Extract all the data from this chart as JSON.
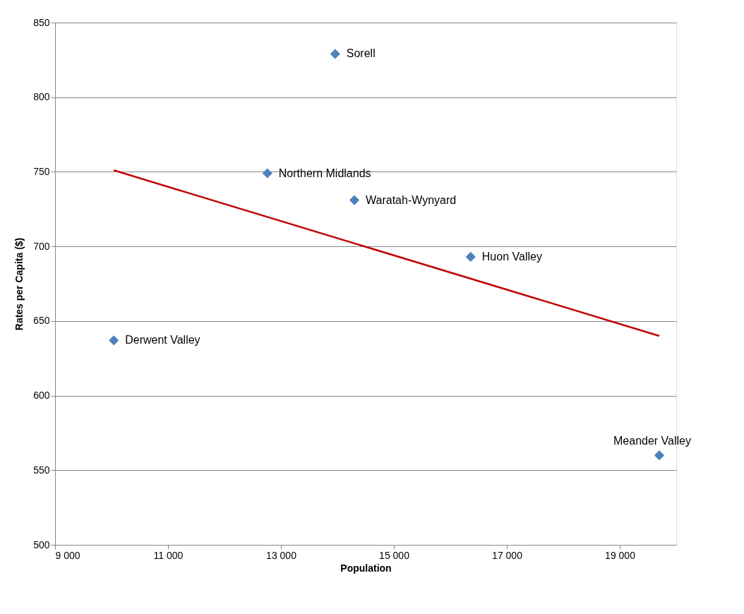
{
  "chart_data": {
    "type": "scatter",
    "xlabel": "Population",
    "ylabel": "Rates per Capita ($)",
    "xlim": [
      9000,
      20000
    ],
    "ylim": [
      500,
      850
    ],
    "xticks": [
      {
        "value": 9000,
        "label": "9 000"
      },
      {
        "value": 11000,
        "label": "11 000"
      },
      {
        "value": 13000,
        "label": "13 000"
      },
      {
        "value": 15000,
        "label": "15 000"
      },
      {
        "value": 17000,
        "label": "17 000"
      },
      {
        "value": 19000,
        "label": "19 000"
      }
    ],
    "yticks": [
      500,
      550,
      600,
      650,
      700,
      750,
      800,
      850
    ],
    "grid": "y",
    "series": [
      {
        "marker": "diamond",
        "color": "#4f81bd",
        "x": [
          13960,
          12760,
          14300,
          16360,
          10040,
          19700
        ],
        "values": [
          829,
          749,
          731,
          693,
          637,
          560
        ]
      },
      {
        "type": "line",
        "marker": "none",
        "color": "#c00000",
        "line_style": "solid",
        "x": [
          10040,
          19700
        ],
        "values": [
          751,
          640
        ]
      }
    ],
    "annotations": [
      {
        "text": "Sorell",
        "x": 13960,
        "y": 829
      },
      {
        "text": "Northern Midlands",
        "x": 12760,
        "y": 749
      },
      {
        "text": "Waratah-Wynyard",
        "x": 14300,
        "y": 731
      },
      {
        "text": "Huon Valley",
        "x": 16360,
        "y": 693
      },
      {
        "text": "Derwent Valley",
        "x": 10040,
        "y": 637
      },
      {
        "text": "Meander Valley",
        "x": 19700,
        "y": 560
      }
    ]
  }
}
